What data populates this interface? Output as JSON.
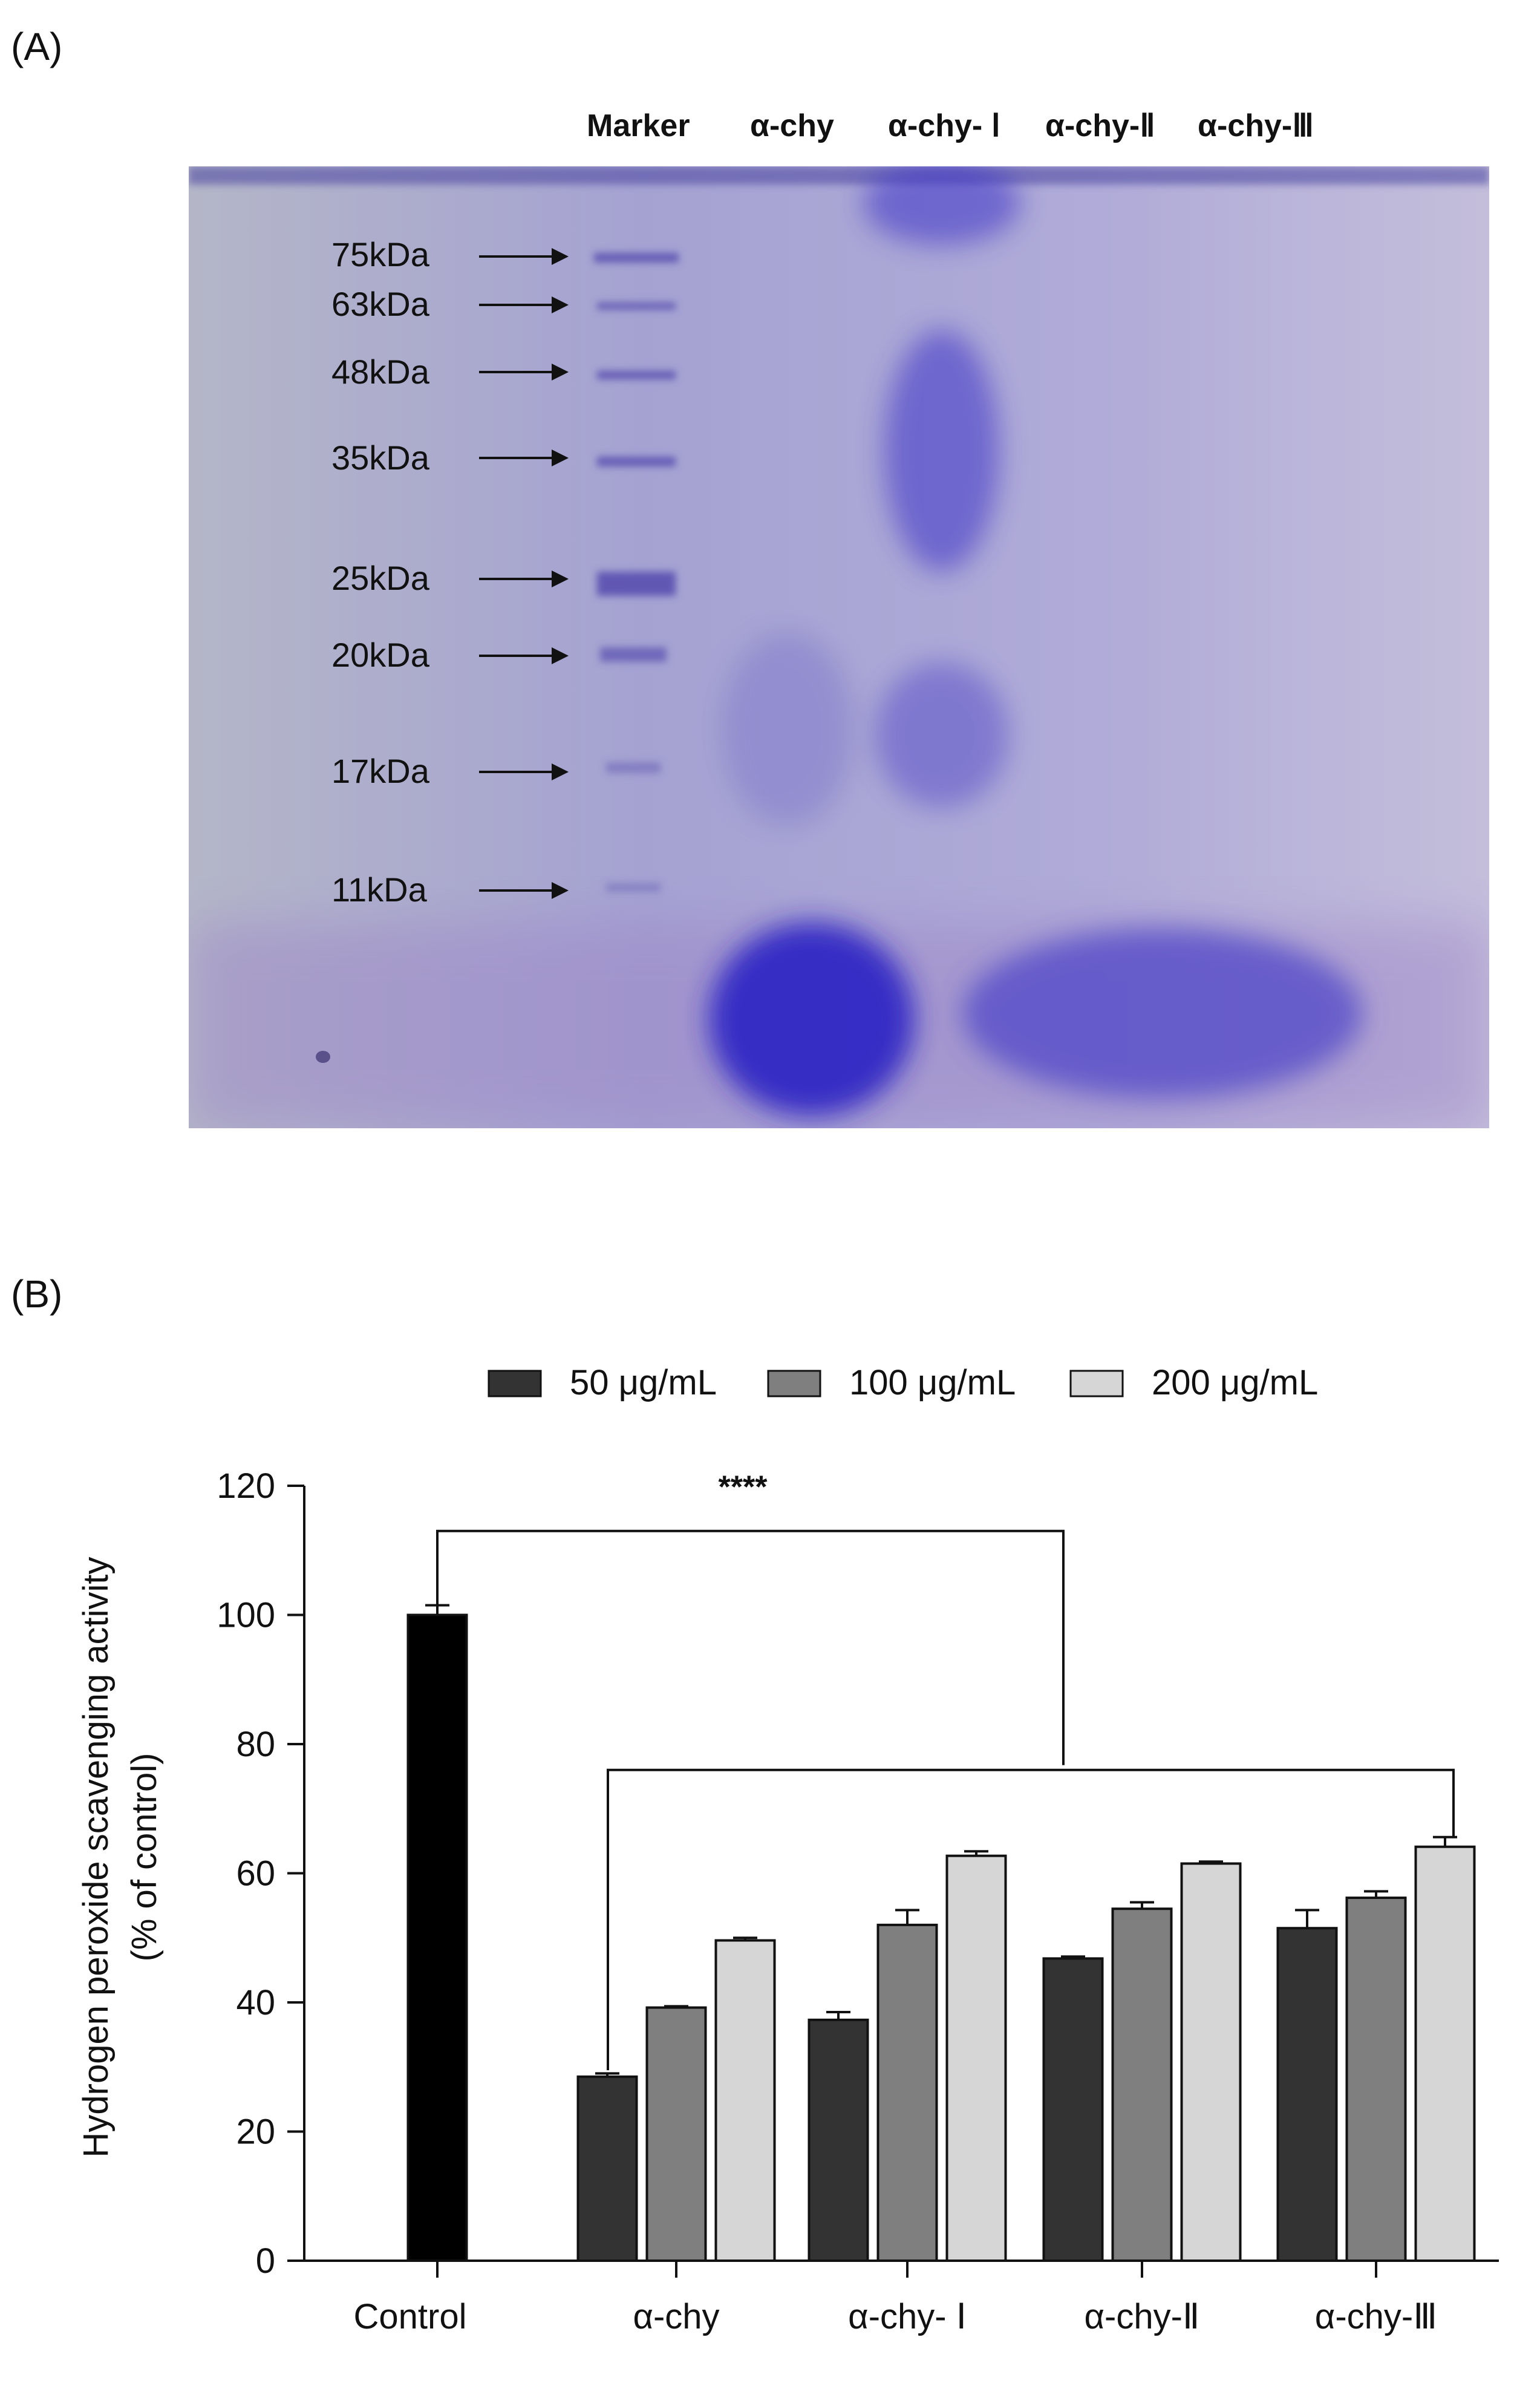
{
  "panel_a": {
    "label": "(A)",
    "lanes": [
      "Marker",
      "α-chy",
      "α-chy- Ⅰ",
      "α-chy-Ⅱ",
      "α-chy-Ⅲ"
    ],
    "markers": [
      "75kDa",
      "63kDa",
      "48kDa",
      "35kDa",
      "25kDa",
      "20kDa",
      "17kDa",
      "11kDa"
    ],
    "colors": {
      "gel_background": "#ada9cf",
      "band": "#3a32c8",
      "marker_band": "#5a4fb0"
    }
  },
  "panel_b": {
    "label": "(B)",
    "significance": "****"
  },
  "chart_data": {
    "type": "bar",
    "title": "",
    "xlabel": "",
    "ylabel": "Hydrogen peroxide scavenging activity (% of control)",
    "ylabel_lines": [
      "Hydrogen peroxide scavenging activity",
      "(% of control)"
    ],
    "ylim": [
      0,
      120
    ],
    "yticks": [
      0,
      20,
      40,
      60,
      80,
      100,
      120
    ],
    "categories": [
      "Control",
      "α-chy",
      "α-chy- Ⅰ",
      "α-chy-Ⅱ",
      "α-chy-Ⅲ"
    ],
    "legend_position": "top",
    "control": {
      "value": 100,
      "error": 1.5,
      "color": "#000000"
    },
    "series": [
      {
        "name": "50 μg/mL",
        "color": "#333333",
        "values": [
          null,
          28.5,
          37.3,
          46.8,
          51.5
        ],
        "errors": [
          null,
          0.5,
          1.2,
          0.3,
          2.8
        ]
      },
      {
        "name": "100 μg/mL",
        "color": "#7f7f7f",
        "values": [
          null,
          39.2,
          52.0,
          54.5,
          56.2
        ],
        "errors": [
          null,
          0.2,
          2.3,
          1.0,
          1.0
        ]
      },
      {
        "name": "200 μg/mL",
        "color": "#d6d6d6",
        "values": [
          null,
          49.6,
          62.7,
          61.5,
          64.1
        ],
        "errors": [
          null,
          0.4,
          0.7,
          0.3,
          1.5
        ]
      }
    ],
    "annotations": [
      {
        "text": "****",
        "compares": "Control vs all α-chy groups"
      }
    ]
  }
}
